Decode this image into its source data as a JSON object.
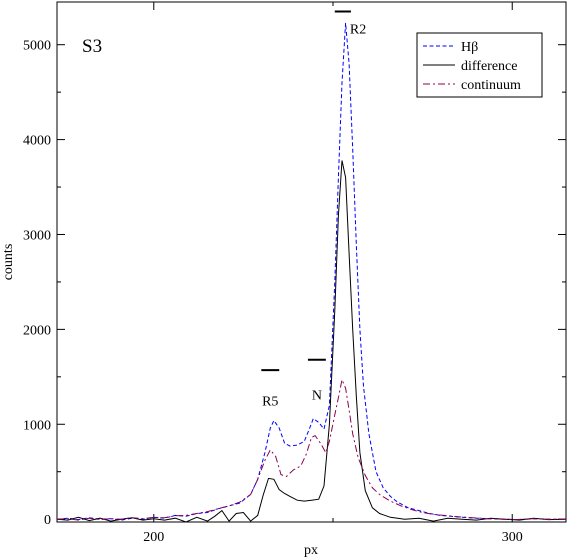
{
  "chart_data": {
    "type": "line",
    "title": "",
    "panel_label": "S3",
    "xlabel": "px",
    "ylabel": "counts",
    "xlim": [
      173,
      315
    ],
    "ylim": [
      -30,
      5450
    ],
    "x_ticks": [
      200,
      300
    ],
    "y_ticks": [
      0,
      1000,
      2000,
      3000,
      4000,
      5000
    ],
    "grid": false,
    "legend_position": "top-right",
    "annotations": [
      {
        "text": "R2",
        "x": 257,
        "y": 5120,
        "bar_x": [
          250.5,
          255
        ],
        "bar_y": 5350
      },
      {
        "text": "N",
        "x": 245.5,
        "y": 1260,
        "bar_x": [
          243,
          248
        ],
        "bar_y": 1680
      },
      {
        "text": "R5",
        "x": 232.5,
        "y": 1200,
        "bar_x": [
          230,
          235
        ],
        "bar_y": 1570
      }
    ],
    "series": [
      {
        "name": "Hβ",
        "style": "dashed",
        "color": "#0000ff",
        "points": [
          [
            173,
            0
          ],
          [
            176,
            10
          ],
          [
            179,
            -5
          ],
          [
            182,
            15
          ],
          [
            185,
            0
          ],
          [
            188,
            5
          ],
          [
            191,
            -10
          ],
          [
            194,
            10
          ],
          [
            197,
            0
          ],
          [
            200,
            20
          ],
          [
            203,
            10
          ],
          [
            206,
            40
          ],
          [
            209,
            30
          ],
          [
            212,
            60
          ],
          [
            215,
            70
          ],
          [
            218,
            110
          ],
          [
            221,
            140
          ],
          [
            224,
            170
          ],
          [
            227,
            260
          ],
          [
            229,
            420
          ],
          [
            231,
            700
          ],
          [
            232.5,
            960
          ],
          [
            233.5,
            1040
          ],
          [
            235,
            960
          ],
          [
            236.5,
            800
          ],
          [
            238,
            770
          ],
          [
            240,
            780
          ],
          [
            242,
            820
          ],
          [
            243.5,
            960
          ],
          [
            244.5,
            1060
          ],
          [
            246,
            1020
          ],
          [
            247.5,
            950
          ],
          [
            249,
            1200
          ],
          [
            250.5,
            2500
          ],
          [
            251.5,
            3600
          ],
          [
            252.5,
            4600
          ],
          [
            253.5,
            5230
          ],
          [
            254.5,
            4800
          ],
          [
            255.5,
            3900
          ],
          [
            256.5,
            2900
          ],
          [
            257.5,
            2000
          ],
          [
            258.5,
            1400
          ],
          [
            260,
            900
          ],
          [
            262,
            500
          ],
          [
            264,
            330
          ],
          [
            266,
            240
          ],
          [
            268,
            180
          ],
          [
            271,
            120
          ],
          [
            274,
            90
          ],
          [
            277,
            60
          ],
          [
            280,
            40
          ],
          [
            283,
            30
          ],
          [
            286,
            20
          ],
          [
            290,
            10
          ],
          [
            294,
            5
          ],
          [
            298,
            0
          ],
          [
            302,
            -5
          ],
          [
            306,
            5
          ],
          [
            310,
            0
          ],
          [
            315,
            0
          ]
        ]
      },
      {
        "name": "difference",
        "style": "solid",
        "color": "#000000",
        "points": [
          [
            173,
            0
          ],
          [
            176,
            -10
          ],
          [
            179,
            20
          ],
          [
            182,
            -15
          ],
          [
            185,
            10
          ],
          [
            188,
            -20
          ],
          [
            191,
            0
          ],
          [
            194,
            15
          ],
          [
            197,
            -10
          ],
          [
            200,
            5
          ],
          [
            203,
            -10
          ],
          [
            206,
            10
          ],
          [
            209,
            -30
          ],
          [
            212,
            20
          ],
          [
            215,
            -20
          ],
          [
            217,
            30
          ],
          [
            219,
            90
          ],
          [
            221,
            -20
          ],
          [
            223,
            60
          ],
          [
            225,
            70
          ],
          [
            227,
            -20
          ],
          [
            229,
            40
          ],
          [
            230.5,
            250
          ],
          [
            232,
            430
          ],
          [
            233.5,
            420
          ],
          [
            235,
            310
          ],
          [
            236.5,
            270
          ],
          [
            238,
            240
          ],
          [
            240,
            200
          ],
          [
            242,
            190
          ],
          [
            244,
            200
          ],
          [
            246,
            210
          ],
          [
            247.5,
            350
          ],
          [
            249,
            1000
          ],
          [
            250.5,
            2200
          ],
          [
            251.5,
            3200
          ],
          [
            252.5,
            3780
          ],
          [
            253.5,
            3600
          ],
          [
            254.5,
            2800
          ],
          [
            255.5,
            2000
          ],
          [
            256.5,
            1300
          ],
          [
            257.5,
            700
          ],
          [
            259,
            300
          ],
          [
            261,
            120
          ],
          [
            263,
            60
          ],
          [
            266,
            20
          ],
          [
            270,
            0
          ],
          [
            274,
            10
          ],
          [
            278,
            -20
          ],
          [
            282,
            10
          ],
          [
            286,
            0
          ],
          [
            290,
            -10
          ],
          [
            294,
            10
          ],
          [
            298,
            0
          ],
          [
            302,
            -10
          ],
          [
            306,
            10
          ],
          [
            310,
            -5
          ],
          [
            315,
            0
          ]
        ]
      },
      {
        "name": "continuum",
        "style": "dashdot",
        "color": "#8b0050",
        "points": [
          [
            173,
            0
          ],
          [
            176,
            5
          ],
          [
            179,
            -10
          ],
          [
            182,
            10
          ],
          [
            185,
            -5
          ],
          [
            188,
            5
          ],
          [
            191,
            0
          ],
          [
            194,
            15
          ],
          [
            197,
            5
          ],
          [
            200,
            20
          ],
          [
            203,
            15
          ],
          [
            206,
            35
          ],
          [
            209,
            40
          ],
          [
            212,
            60
          ],
          [
            215,
            80
          ],
          [
            218,
            110
          ],
          [
            221,
            140
          ],
          [
            224,
            180
          ],
          [
            227,
            260
          ],
          [
            229,
            420
          ],
          [
            231,
            620
          ],
          [
            232.5,
            730
          ],
          [
            234,
            660
          ],
          [
            235.5,
            470
          ],
          [
            237,
            450
          ],
          [
            239,
            520
          ],
          [
            241,
            560
          ],
          [
            242.5,
            680
          ],
          [
            244,
            860
          ],
          [
            245,
            880
          ],
          [
            246.5,
            800
          ],
          [
            248,
            700
          ],
          [
            249,
            820
          ],
          [
            250.5,
            1100
          ],
          [
            251.5,
            1280
          ],
          [
            252.5,
            1470
          ],
          [
            253.5,
            1380
          ],
          [
            254.5,
            1150
          ],
          [
            255.5,
            900
          ],
          [
            257,
            650
          ],
          [
            259,
            460
          ],
          [
            261,
            330
          ],
          [
            263,
            260
          ],
          [
            266,
            190
          ],
          [
            269,
            140
          ],
          [
            272,
            100
          ],
          [
            275,
            70
          ],
          [
            278,
            50
          ],
          [
            281,
            40
          ],
          [
            285,
            25
          ],
          [
            289,
            15
          ],
          [
            293,
            5
          ],
          [
            297,
            0
          ],
          [
            301,
            -5
          ],
          [
            305,
            5
          ],
          [
            310,
            0
          ],
          [
            315,
            0
          ]
        ]
      }
    ]
  }
}
